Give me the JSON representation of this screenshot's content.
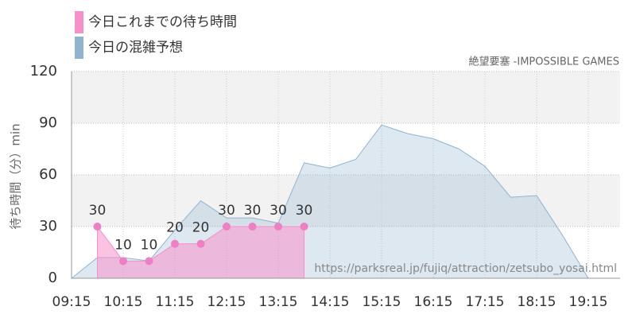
{
  "chart_data": {
    "type": "area",
    "subtitle": "絶望要塞 -IMPOSSIBLE GAMES",
    "y_label": "待ち時間（分）min",
    "annotation": "https://parksreal.jp/fujiq/attraction/zetsubo_yosai.html",
    "categories": [
      "09:15",
      null,
      "10:15",
      null,
      "11:15",
      null,
      "12:15",
      null,
      "13:15",
      null,
      "14:15",
      null,
      "15:15",
      null,
      "16:15",
      null,
      "17:15",
      null,
      "18:15",
      null,
      "19:15",
      null
    ],
    "series": [
      {
        "name": "今日これまでの待ち時間",
        "color": "#f78fcb",
        "points": true,
        "values": [
          null,
          30,
          10,
          10,
          20,
          20,
          30,
          30,
          30,
          30,
          null,
          null,
          null,
          null,
          null,
          null,
          null,
          null,
          null,
          null,
          null,
          null
        ]
      },
      {
        "name": "今日の混雑予想",
        "color": "#8fb3d1",
        "points": false,
        "values": [
          0,
          12,
          12,
          10,
          28,
          45,
          35,
          35,
          32,
          67,
          64,
          69,
          89,
          84,
          81,
          75,
          65,
          47,
          48,
          25,
          0,
          0
        ]
      }
    ],
    "ylim": [
      0,
      120
    ],
    "yticks": [
      0,
      30,
      60,
      90,
      120
    ],
    "grid": true
  }
}
